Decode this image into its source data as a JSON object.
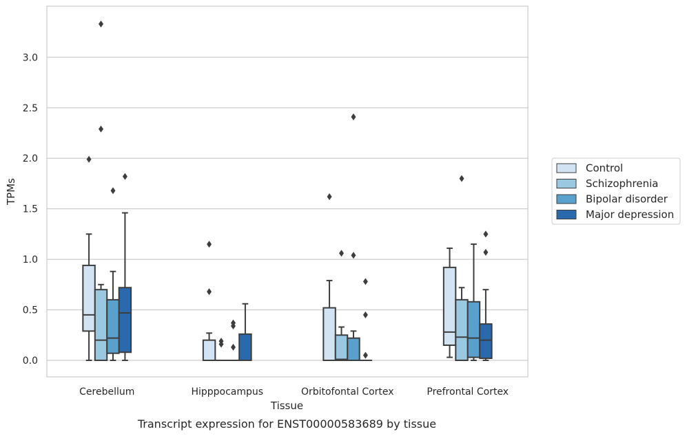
{
  "chart_data": {
    "type": "box",
    "caption": "Transcript expression for ENST00000583689 by tissue",
    "xlabel": "Tissue",
    "ylabel": "TPMs",
    "ylim": [
      -0.16,
      3.52
    ],
    "yticks": [
      0.0,
      0.5,
      1.0,
      1.5,
      2.0,
      2.5,
      3.0
    ],
    "ytick_labels": [
      "0.0",
      "0.5",
      "1.0",
      "1.5",
      "2.0",
      "2.5",
      "3.0"
    ],
    "grid": "horizontal",
    "legend_position": "right",
    "categories": [
      "Cerebellum",
      "Hipppocampus",
      "Orbitofontal Cortex",
      "Prefrontal Cortex"
    ],
    "series": [
      {
        "name": "Control",
        "color": "#d2e3f3",
        "boxes": [
          {
            "q1": 0.29,
            "median": 0.45,
            "q3": 0.94,
            "whisker_low": 0.0,
            "whisker_high": 1.25,
            "outliers": [
              1.99
            ]
          },
          {
            "q1": 0.0,
            "median": 0.0,
            "q3": 0.2,
            "whisker_low": 0.0,
            "whisker_high": 0.27,
            "outliers": [
              0.68,
              1.15
            ]
          },
          {
            "q1": 0.0,
            "median": 0.0,
            "q3": 0.52,
            "whisker_low": 0.0,
            "whisker_high": 0.79,
            "outliers": [
              1.62
            ]
          },
          {
            "q1": 0.15,
            "median": 0.28,
            "q3": 0.92,
            "whisker_low": 0.03,
            "whisker_high": 1.11,
            "outliers": []
          }
        ]
      },
      {
        "name": "Schizophrenia",
        "color": "#9ac8e0",
        "boxes": [
          {
            "q1": 0.0,
            "median": 0.2,
            "q3": 0.7,
            "whisker_low": 0.0,
            "whisker_high": 0.75,
            "outliers": [
              2.29,
              3.33
            ]
          },
          {
            "q1": 0.0,
            "median": 0.0,
            "q3": 0.0,
            "whisker_low": 0.0,
            "whisker_high": 0.0,
            "outliers": [
              0.16,
              0.19
            ]
          },
          {
            "q1": 0.0,
            "median": 0.01,
            "q3": 0.25,
            "whisker_low": 0.0,
            "whisker_high": 0.33,
            "outliers": [
              1.06
            ]
          },
          {
            "q1": 0.0,
            "median": 0.23,
            "q3": 0.6,
            "whisker_low": 0.0,
            "whisker_high": 0.72,
            "outliers": [
              1.8
            ]
          }
        ]
      },
      {
        "name": "Bipolar disorder",
        "color": "#5aa0cd",
        "boxes": [
          {
            "q1": 0.07,
            "median": 0.22,
            "q3": 0.6,
            "whisker_low": 0.0,
            "whisker_high": 0.88,
            "outliers": [
              1.68
            ]
          },
          {
            "q1": 0.0,
            "median": 0.0,
            "q3": 0.0,
            "whisker_low": 0.0,
            "whisker_high": 0.0,
            "outliers": [
              0.13,
              0.34,
              0.37
            ]
          },
          {
            "q1": 0.0,
            "median": 0.0,
            "q3": 0.22,
            "whisker_low": 0.0,
            "whisker_high": 0.29,
            "outliers": [
              1.04,
              2.41
            ]
          },
          {
            "q1": 0.03,
            "median": 0.22,
            "q3": 0.58,
            "whisker_low": 0.0,
            "whisker_high": 1.15,
            "outliers": []
          }
        ]
      },
      {
        "name": "Major depression",
        "color": "#2a6aac",
        "boxes": [
          {
            "q1": 0.08,
            "median": 0.47,
            "q3": 0.72,
            "whisker_low": 0.0,
            "whisker_high": 1.46,
            "outliers": [
              1.82
            ]
          },
          {
            "q1": 0.0,
            "median": 0.0,
            "q3": 0.26,
            "whisker_low": 0.0,
            "whisker_high": 0.56,
            "outliers": []
          },
          {
            "q1": 0.0,
            "median": 0.0,
            "q3": 0.0,
            "whisker_low": 0.0,
            "whisker_high": 0.0,
            "outliers": [
              0.05,
              0.45,
              0.78
            ]
          },
          {
            "q1": 0.02,
            "median": 0.2,
            "q3": 0.36,
            "whisker_low": 0.0,
            "whisker_high": 0.7,
            "outliers": [
              1.07,
              1.25
            ]
          }
        ]
      }
    ]
  }
}
